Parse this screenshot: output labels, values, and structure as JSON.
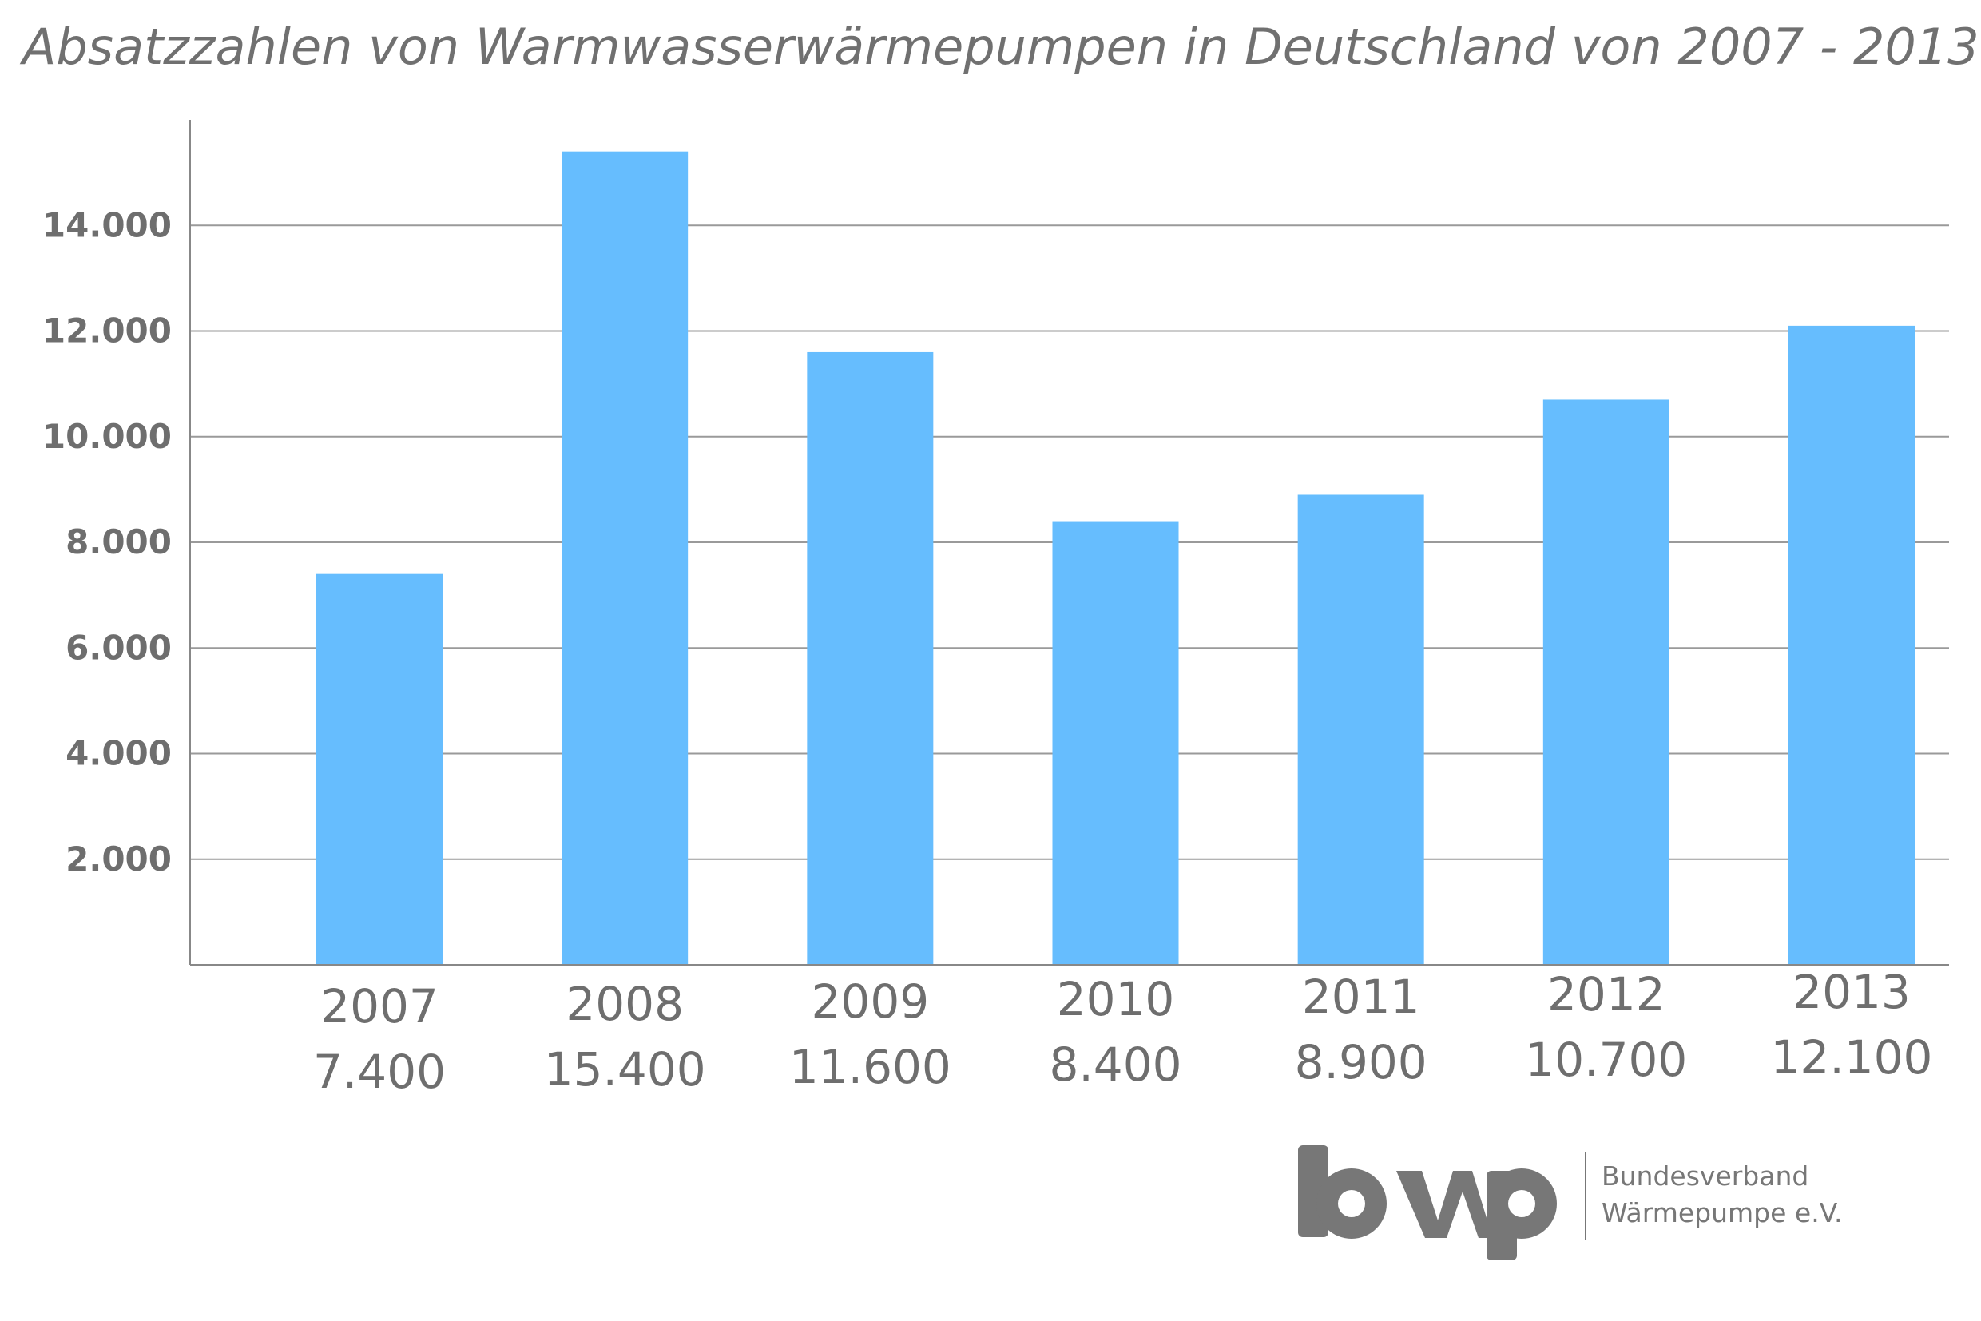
{
  "chart_data": {
    "type": "bar",
    "title": "Absatzzahlen von Warmwasserwärmepumpen in Deutschland von 2007 - 2013",
    "categories": [
      "2007",
      "2008",
      "2009",
      "2010",
      "2011",
      "2012",
      "2013"
    ],
    "values": [
      7400,
      15400,
      11600,
      8400,
      8900,
      10700,
      12100
    ],
    "value_labels": [
      "7.400",
      "15.400",
      "11.600",
      "8.400",
      "8.900",
      "10.700",
      "12.100"
    ],
    "yticks": [
      2000,
      4000,
      6000,
      8000,
      10000,
      12000,
      14000
    ],
    "ytick_labels": [
      "2.000",
      "4.000",
      "6.000",
      "8.000",
      "10.000",
      "12.000",
      "14.000"
    ],
    "ylim": [
      0,
      16000
    ],
    "grid": true,
    "legend": "none",
    "bar_color": "#66bdfe"
  },
  "logo": {
    "mark": "bwp",
    "line1": "Bundesverband",
    "line2": "Wärmepumpe e.V.",
    "color": "#777777"
  }
}
